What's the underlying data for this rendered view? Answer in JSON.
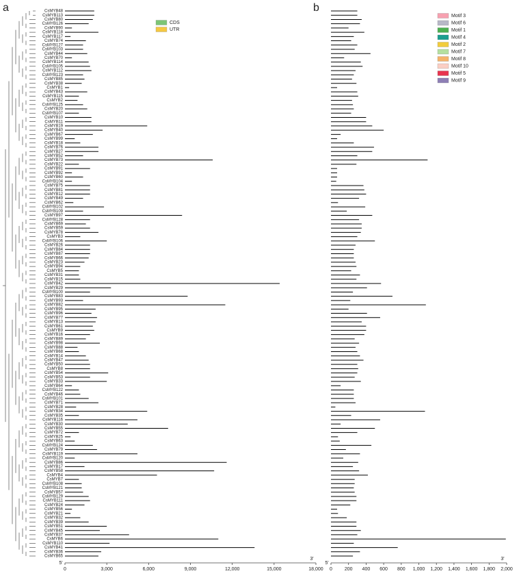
{
  "genes": [
    "CsMYB48",
    "CsMYB113",
    "CsMYB80",
    "CsMYB126",
    "CsMYB90",
    "CsMYB118",
    "CsMYB117",
    "CsMYB74",
    "CsMYB127",
    "CsMYB103",
    "CsMYB44",
    "CsMYB70",
    "CsMYB114",
    "CsMYB105",
    "CsMYB112",
    "CsMYB123",
    "CsMYB85",
    "CsMYB38",
    "CsMYB1",
    "CsMYB43",
    "CsMYB115",
    "CsMYB2",
    "CsMYB125",
    "CsMYB20",
    "CsMYB107",
    "CsMYB10",
    "CsMYB11",
    "CsMYB19",
    "CsMYB40",
    "CsMYB67",
    "CsMYB99",
    "CsMYB18",
    "CsMYB76",
    "CsMYB27",
    "CsMYB52",
    "CsMYB73",
    "CsMYB22",
    "CsMYB91",
    "CsMYB92",
    "CsMYB60",
    "CsMYB104",
    "CsMYB75",
    "CsMYB81",
    "CsMYB12",
    "CsMYB49",
    "CsMYB62",
    "CsMYB102",
    "CsMYB109",
    "CsMYB97",
    "CsMYB128",
    "CsMYB69",
    "CsMYB59",
    "CsMYB78",
    "CsMYB3",
    "CsMYB106",
    "CsMYB26",
    "CsMYB84",
    "CsMYB87",
    "CsMYB66",
    "CsMYB23",
    "CsMYB94",
    "CsMYB5",
    "CsMYB31",
    "CsMYB15",
    "CsMYB42",
    "CsMYB29",
    "CsMYB100",
    "CsMYB83",
    "CsMYB93",
    "CsMYB82",
    "CsMYB95",
    "CsMYB96",
    "CsMYB77",
    "CsMYB13",
    "CsMYB61",
    "CsMYB9",
    "CsMYB16",
    "CsMYB89",
    "CsMYB98",
    "CsMYB88",
    "CsMYB68",
    "CsMYB14",
    "CsMYB47",
    "CsMYB50",
    "CsMYB8",
    "CsMYB54",
    "CsMYB53",
    "CsMYB33",
    "CsMYB64",
    "CsMYB122",
    "CsMYB46",
    "CsMYB101",
    "CsMYB71",
    "CsMYB28",
    "CsMYB34",
    "CsMYB35",
    "CsMYB116",
    "CsMYB30",
    "CsMYB55",
    "CsMYB72",
    "CsMYB25",
    "CsMYB63",
    "CsMYB124",
    "CsMYB79",
    "CsMYB119",
    "CsMYB120",
    "CsMYB86",
    "CsMYB17",
    "CsMYB58",
    "CsMYB4",
    "CsMYB7",
    "CsMYB108",
    "CsMYB121",
    "CsMYB57",
    "CsMYB129",
    "CsMYB111",
    "CsMYB24",
    "CsMYB56",
    "CsMYB21",
    "CsMYB32",
    "CsMYB39",
    "CsMYB51",
    "CsMYB45",
    "CsMYB37",
    "CsMYB6",
    "CsMYB110",
    "CsMYB41",
    "CsMYB36",
    "CsMYB65"
  ],
  "panel_a": {
    "label": "a",
    "values": [
      2100,
      2100,
      2000,
      1700,
      500,
      2400,
      400,
      1500,
      1300,
      1300,
      1600,
      500,
      1700,
      1800,
      1900,
      1300,
      1400,
      1200,
      300,
      1600,
      1000,
      900,
      1300,
      1600,
      1000,
      1900,
      1900,
      5900,
      2700,
      2000,
      700,
      1100,
      2400,
      2400,
      1300,
      10600,
      1000,
      1800,
      500,
      1300,
      500,
      1800,
      1800,
      1800,
      1300,
      600,
      2800,
      1300,
      8400,
      1800,
      1500,
      1800,
      2400,
      1100,
      3000,
      1800,
      1800,
      1800,
      1700,
      1400,
      1100,
      1000,
      1000,
      1100,
      15400,
      3300,
      1800,
      8800,
      1300,
      11500,
      2200,
      1900,
      2300,
      2200,
      2000,
      2100,
      1800,
      1500,
      2500,
      900,
      1000,
      1500,
      1700,
      1800,
      1800,
      3100,
      1800,
      3000,
      500,
      1000,
      1100,
      1700,
      2400,
      800,
      5900,
      1000,
      5200,
      4500,
      7400,
      1000,
      400,
      700,
      2000,
      2300,
      5200,
      700,
      11600,
      1400,
      10700,
      6600,
      1000,
      1200,
      1200,
      1300,
      1700,
      1800,
      1400,
      500,
      400,
      1100,
      1700,
      3000,
      2500,
      4600,
      11000,
      3200,
      13600,
      2600,
      2400
    ],
    "xlim": [
      0,
      18000
    ],
    "xticks": [
      0,
      {
        "value": 3000,
        "label": "3,000"
      },
      {
        "value": 6000,
        "label": "6,000"
      },
      {
        "value": 9000,
        "label": "9,000"
      },
      {
        "value": 12000,
        "label": "12,000"
      },
      {
        "value": 15000,
        "label": "15,000"
      },
      {
        "value": 18000,
        "label": "18,000"
      }
    ],
    "end_labels": [
      "5'",
      "3'"
    ],
    "legend": [
      {
        "name": "CDS",
        "color": "#7cc576"
      },
      {
        "name": "UTR",
        "color": "#f5c842"
      }
    ]
  },
  "panel_b": {
    "label": "b",
    "values": [
      300,
      300,
      350,
      330,
      200,
      380,
      260,
      230,
      300,
      270,
      450,
      150,
      340,
      360,
      280,
      260,
      240,
      290,
      70,
      300,
      310,
      240,
      250,
      260,
      230,
      400,
      400,
      470,
      600,
      110,
      70,
      260,
      490,
      470,
      300,
      1100,
      290,
      70,
      70,
      70,
      60,
      370,
      380,
      400,
      320,
      80,
      390,
      180,
      470,
      320,
      350,
      350,
      340,
      300,
      500,
      280,
      260,
      260,
      260,
      280,
      290,
      230,
      330,
      290,
      570,
      410,
      250,
      700,
      220,
      1080,
      200,
      410,
      560,
      350,
      400,
      400,
      380,
      270,
      320,
      280,
      300,
      330,
      370,
      300,
      310,
      300,
      270,
      340,
      110,
      260,
      260,
      260,
      280,
      50,
      1070,
      230,
      560,
      110,
      500,
      300,
      80,
      100,
      460,
      170,
      330,
      140,
      310,
      250,
      320,
      420,
      270,
      270,
      260,
      270,
      290,
      290,
      220,
      70,
      80,
      180,
      290,
      290,
      340,
      300,
      1990,
      260,
      760,
      330,
      250
    ],
    "xlim": [
      0,
      2000
    ],
    "xticks": [
      0,
      200,
      400,
      600,
      800,
      {
        "value": 1000,
        "label": "1,000"
      },
      {
        "value": 1200,
        "label": "1,200"
      },
      {
        "value": 1400,
        "label": "1,400"
      },
      {
        "value": 1600,
        "label": "1,600"
      },
      {
        "value": 1800,
        "label": "1,800"
      },
      {
        "value": 2000,
        "label": "2,000"
      }
    ],
    "end_labels": [
      "5'",
      "3'"
    ],
    "legend": [
      {
        "name": "Motif 3",
        "color": "#f7a1b0"
      },
      {
        "name": "Motif 6",
        "color": "#b8b8c8"
      },
      {
        "name": "Motif 1",
        "color": "#4caf50"
      },
      {
        "name": "Motif 4",
        "color": "#1b9e8f"
      },
      {
        "name": "Motif 2",
        "color": "#f2cc3c"
      },
      {
        "name": "Motif 7",
        "color": "#b5e0a0"
      },
      {
        "name": "Motif 8",
        "color": "#f5b36a"
      },
      {
        "name": "Motif 10",
        "color": "#fbcfc4"
      },
      {
        "name": "Motif 5",
        "color": "#e8344e"
      },
      {
        "name": "Motif 9",
        "color": "#8e7fb5"
      }
    ]
  }
}
